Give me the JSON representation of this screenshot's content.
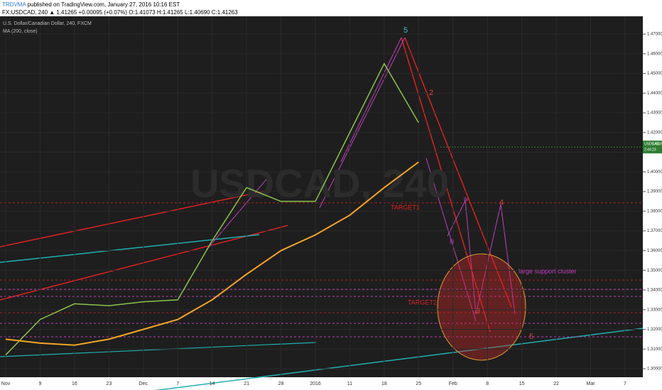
{
  "header": {
    "author": "TRDVMA",
    "published": "published on TradingView.com, January 27, 2016 10:16 EST",
    "quote": "FX:USDCAD, 240 ▲ 1.41265 +0.00095 (+0.07%) O:1.41073 H:1.41265 L:1.40690 C:1.41263"
  },
  "chart_data": {
    "type": "line",
    "watermark": "USDCAD, 240",
    "categories": [
      "Nov",
      "9",
      "16",
      "23",
      "Dec",
      "7",
      "14",
      "21",
      "28",
      "2016",
      "11",
      "18",
      "25",
      "Feb",
      "8",
      "15",
      "22",
      "Mar",
      "7"
    ],
    "series": [
      {
        "name": "U.S. Dollar/Canadian Dollar, 240, FXCM",
        "color": "#8bc34a",
        "values": [
          1.307,
          1.325,
          1.333,
          1.332,
          1.334,
          1.335,
          1.365,
          1.392,
          1.385,
          1.385,
          1.42,
          1.455,
          1.425,
          null,
          null,
          null,
          null,
          null,
          null
        ]
      },
      {
        "name": "MA (200, close)",
        "color": "#f5a623",
        "values": [
          1.315,
          1.313,
          1.312,
          1.315,
          1.32,
          1.325,
          1.335,
          1.348,
          1.36,
          1.368,
          1.378,
          1.392,
          1.405,
          null,
          null,
          null,
          null,
          null,
          null
        ]
      }
    ],
    "last_price_name": "USDCAD",
    "last_price": 1.41263,
    "countdown": "2:44:23",
    "ylim": [
      1.2946,
      1.4765
    ],
    "yticks": [
      {
        "value": 1.3,
        "label": "1.30000"
      },
      {
        "value": 1.31,
        "label": "1.31000"
      },
      {
        "value": 1.32,
        "label": "1.32000"
      },
      {
        "value": 1.33,
        "label": "1.33000"
      },
      {
        "value": 1.34,
        "label": "1.34000"
      },
      {
        "value": 1.35,
        "label": "1.35000"
      },
      {
        "value": 1.36,
        "label": "1.36000"
      },
      {
        "value": 1.37,
        "label": "1.37000"
      },
      {
        "value": 1.38,
        "label": "1.38000"
      },
      {
        "value": 1.39,
        "label": "1.39000"
      },
      {
        "value": 1.4,
        "label": "1.40000"
      },
      {
        "value": 1.41,
        "label": "1.41000"
      },
      {
        "value": 1.42,
        "label": "1.42000"
      },
      {
        "value": 1.43,
        "label": "1.43000"
      },
      {
        "value": 1.44,
        "label": "1.44000"
      },
      {
        "value": 1.45,
        "label": "1.45000"
      },
      {
        "value": 1.46,
        "label": "1.46000"
      },
      {
        "value": 1.47,
        "label": "1.47000"
      }
    ],
    "grid": true,
    "annotations": [
      "5",
      "2",
      "TARGET1",
      "TARGET2",
      "large support cluster",
      "3",
      "4",
      "5",
      "iii",
      "iv"
    ]
  }
}
